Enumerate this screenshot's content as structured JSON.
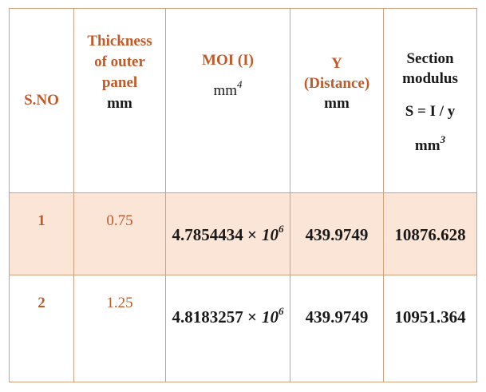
{
  "colors": {
    "accent_text": "#c05a28",
    "row_highlight_bg": "#fbe5d6",
    "border": "#d2a17b",
    "page_bg": "#ffffff",
    "dark_text": "#1a1a1a"
  },
  "header": {
    "sno": "S.NO",
    "thickness": {
      "line1": "Thickness",
      "line2": "of outer",
      "line3": "panel",
      "unit": "mm"
    },
    "moi": {
      "title": "MOI (I)",
      "unit_base": "mm",
      "unit_exp": "4"
    },
    "y": {
      "line1": "Y",
      "line2": "(Distance)",
      "unit": "mm"
    },
    "section": {
      "line1": "Section",
      "line2": "modulus",
      "formula": "S = I / y",
      "unit_base": "mm",
      "unit_exp": "3"
    }
  },
  "rows": [
    {
      "sno": "1",
      "thickness": "0.75",
      "moi_mantissa": "4.7854434 ×",
      "moi_base": "10",
      "moi_exp": "6",
      "y_distance": "439.9749",
      "section_modulus": "10876.628"
    },
    {
      "sno": "2",
      "thickness": "1.25",
      "moi_mantissa": "4.8183257 ×",
      "moi_base": "10",
      "moi_exp": "6",
      "y_distance": "439.9749",
      "section_modulus": "10951.364"
    }
  ]
}
